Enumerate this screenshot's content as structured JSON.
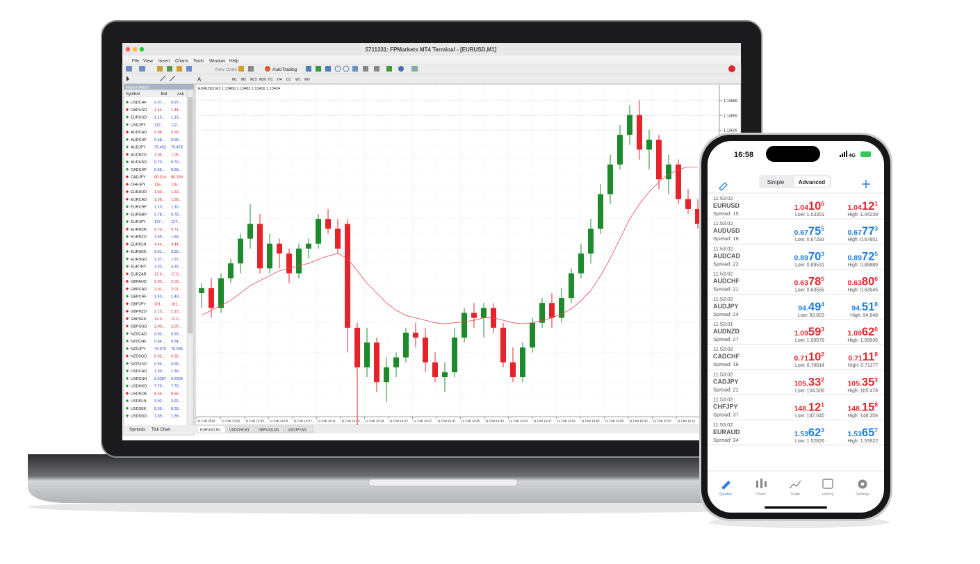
{
  "laptop": {
    "window_title": "5711331: FPMarkets MT4 Terminal - [EURUSD,M1]",
    "menu": [
      "File",
      "View",
      "Insert",
      "Charts",
      "Tools",
      "Window",
      "Help"
    ],
    "toolbar": {
      "new_order": "New Order",
      "autotrading": "AutoTrading",
      "timeframes": [
        "M1",
        "M5",
        "M15",
        "M30",
        "H1",
        "H4",
        "D1",
        "W1",
        "MN"
      ]
    },
    "market_watch": {
      "title": "Market Watch",
      "columns": [
        "Symbol",
        "Bid",
        "Ask"
      ],
      "colors": {
        "up": "#1a3fd0",
        "down": "#d81e1e",
        "up_icon": "#1f9a3a",
        "down_icon": "#d81e1e"
      },
      "rows": [
        {
          "symbol": "USDCHF",
          "bid": "0.97...",
          "ask": "0.97...",
          "trend": "up"
        },
        {
          "symbol": "GBPUSD",
          "bid": "1.44...",
          "ask": "1.44...",
          "trend": "down"
        },
        {
          "symbol": "EURUSD",
          "bid": "1.13...",
          "ask": "1.13...",
          "trend": "up"
        },
        {
          "symbol": "USDJPY",
          "bid": "112...",
          "ask": "112...",
          "trend": "up"
        },
        {
          "symbol": "AUDCAD",
          "bid": "0.98...",
          "ask": "0.90...",
          "trend": "down"
        },
        {
          "symbol": "AUDCHF",
          "bid": "0.68...",
          "ask": "0.68...",
          "trend": "up"
        },
        {
          "symbol": "AUDJPY",
          "bid": "79.452",
          "ask": "79.478",
          "trend": "up"
        },
        {
          "symbol": "AUDNZD",
          "bid": "1.05...",
          "ask": "1.05...",
          "trend": "down"
        },
        {
          "symbol": "AUDUSD",
          "bid": "0.70...",
          "ask": "0.70...",
          "trend": "up"
        },
        {
          "symbol": "CADCHF",
          "bid": "0.69...",
          "ask": "0.69...",
          "trend": "up"
        },
        {
          "symbol": "CADJPY",
          "bid": "80.314",
          "ask": "80.339",
          "trend": "down"
        },
        {
          "symbol": "CHFJPY",
          "bid": "115...",
          "ask": "115...",
          "trend": "down"
        },
        {
          "symbol": "EURAUD",
          "bid": "1.60...",
          "ask": "1.60...",
          "trend": "down"
        },
        {
          "symbol": "EURCAD",
          "bid": "1.58...",
          "ask": "1.58...",
          "trend": "down"
        },
        {
          "symbol": "EURCHF",
          "bid": "1.10...",
          "ask": "1.10...",
          "trend": "up"
        },
        {
          "symbol": "EURGBP",
          "bid": "0.78...",
          "ask": "0.78...",
          "trend": "up"
        },
        {
          "symbol": "EURJPY",
          "bid": "127...",
          "ask": "127...",
          "trend": "up"
        },
        {
          "symbol": "EURNOK",
          "bid": "9.70...",
          "ask": "9.71...",
          "trend": "down"
        },
        {
          "symbol": "EURNZD",
          "bid": "1.69...",
          "ask": "1.69...",
          "trend": "up"
        },
        {
          "symbol": "EURPLN",
          "bid": "4.44...",
          "ask": "4.44...",
          "trend": "down"
        },
        {
          "symbol": "EURSEK",
          "bid": "9.51...",
          "ask": "9.52...",
          "trend": "up"
        },
        {
          "symbol": "EURSGD",
          "bid": "1.57...",
          "ask": "1.57...",
          "trend": "up"
        },
        {
          "symbol": "EURTRY",
          "bid": "3.32...",
          "ask": "3.32...",
          "trend": "up"
        },
        {
          "symbol": "EURZAR",
          "bid": "17.9...",
          "ask": "17.9...",
          "trend": "down"
        },
        {
          "symbol": "GBPAUD",
          "bid": "2.03...",
          "ask": "2.03...",
          "trend": "down"
        },
        {
          "symbol": "GBPCAD",
          "bid": "2.01...",
          "ask": "2.01...",
          "trend": "down"
        },
        {
          "symbol": "GBPCHF",
          "bid": "1.40...",
          "ask": "1.40...",
          "trend": "up"
        },
        {
          "symbol": "GBPJPY",
          "bid": "161...",
          "ask": "161...",
          "trend": "down"
        },
        {
          "symbol": "GBPNZD",
          "bid": "2.15...",
          "ask": "2.15...",
          "trend": "down"
        },
        {
          "symbol": "GBPSEK",
          "bid": "12.0...",
          "ask": "12.0...",
          "trend": "down"
        },
        {
          "symbol": "GBPSGD",
          "bid": "2.00...",
          "ask": "2.00...",
          "trend": "down"
        },
        {
          "symbol": "NZDCAD",
          "bid": "0.93...",
          "ask": "0.93...",
          "trend": "up"
        },
        {
          "symbol": "NZDCHF",
          "bid": "0.64...",
          "ask": "0.64...",
          "trend": "up"
        },
        {
          "symbol": "NZDJPY",
          "bid": "74.975",
          "ask": "75.005",
          "trend": "up"
        },
        {
          "symbol": "NZDSGD",
          "bid": "0.92...",
          "ask": "0.92...",
          "trend": "down"
        },
        {
          "symbol": "NZDUSD",
          "bid": "0.66...",
          "ask": "0.66...",
          "trend": "up"
        },
        {
          "symbol": "USDCAD",
          "bid": "1.39...",
          "ask": "1.39...",
          "trend": "up"
        },
        {
          "symbol": "USDCNH",
          "bid": "6.5287",
          "ask": "6.5309",
          "trend": "up"
        },
        {
          "symbol": "USDHKD",
          "bid": "7.79...",
          "ask": "7.79...",
          "trend": "up"
        },
        {
          "symbol": "USDNOK",
          "bid": "8.55...",
          "ask": "8.56...",
          "trend": "down"
        },
        {
          "symbol": "USDPLN",
          "bid": "3.92...",
          "ask": "3.92...",
          "trend": "up"
        },
        {
          "symbol": "USDSEK",
          "bid": "8.39...",
          "ask": "8.39...",
          "trend": "up"
        },
        {
          "symbol": "USDSGD",
          "bid": "1.39...",
          "ask": "1.39...",
          "trend": "up"
        }
      ],
      "tabs": [
        "Symbols",
        "Tick Chart"
      ]
    },
    "chart": {
      "type": "candlestick",
      "header": "EURUSD,M1  1.13469 1.13483 1.13416 1.13424",
      "colors": {
        "up": "#1d8a2c",
        "down": "#e5232b",
        "ma": "#e8474c",
        "grid": "#c9c9c9"
      },
      "grid": true,
      "ylim": [
        1.1305,
        1.1371
      ],
      "yticks": [
        1.13629,
        1.13659,
        1.13689
      ],
      "candles": [
        [
          1.133,
          1.1332,
          1.1327,
          1.1331
        ],
        [
          1.1331,
          1.1333,
          1.1325,
          1.1327
        ],
        [
          1.1327,
          1.1334,
          1.1326,
          1.1333
        ],
        [
          1.1333,
          1.1337,
          1.1332,
          1.1336
        ],
        [
          1.1336,
          1.1342,
          1.1334,
          1.1341
        ],
        [
          1.1341,
          1.1348,
          1.1339,
          1.1344
        ],
        [
          1.1344,
          1.1346,
          1.1334,
          1.1335
        ],
        [
          1.1335,
          1.1342,
          1.1334,
          1.134
        ],
        [
          1.134,
          1.1341,
          1.1335,
          1.1338
        ],
        [
          1.1338,
          1.1339,
          1.1332,
          1.1334
        ],
        [
          1.1334,
          1.134,
          1.1333,
          1.1339
        ],
        [
          1.1339,
          1.1341,
          1.1337,
          1.134
        ],
        [
          1.134,
          1.1346,
          1.1339,
          1.1345
        ],
        [
          1.1345,
          1.1347,
          1.1342,
          1.1343
        ],
        [
          1.1343,
          1.1345,
          1.1338,
          1.1339
        ],
        [
          1.1344,
          1.1345,
          1.1318,
          1.1323
        ],
        [
          1.1323,
          1.1324,
          1.1302,
          1.1315
        ],
        [
          1.1315,
          1.1323,
          1.1313,
          1.132
        ],
        [
          1.132,
          1.1321,
          1.131,
          1.1312
        ],
        [
          1.1312,
          1.1317,
          1.1308,
          1.1315
        ],
        [
          1.1315,
          1.1318,
          1.1313,
          1.1317
        ],
        [
          1.1317,
          1.1323,
          1.1316,
          1.1322
        ],
        [
          1.1322,
          1.1324,
          1.1319,
          1.1321
        ],
        [
          1.1321,
          1.1323,
          1.1314,
          1.1316
        ],
        [
          1.1316,
          1.1318,
          1.1312,
          1.1313
        ],
        [
          1.1313,
          1.1316,
          1.131,
          1.1314
        ],
        [
          1.1314,
          1.1323,
          1.1313,
          1.1321
        ],
        [
          1.1321,
          1.1327,
          1.132,
          1.1326
        ],
        [
          1.1326,
          1.1328,
          1.1323,
          1.1325
        ],
        [
          1.1325,
          1.1328,
          1.1321,
          1.1327
        ],
        [
          1.1327,
          1.1328,
          1.1322,
          1.1323
        ],
        [
          1.1323,
          1.1324,
          1.1315,
          1.1316
        ],
        [
          1.1316,
          1.1319,
          1.1312,
          1.1313
        ],
        [
          1.1313,
          1.132,
          1.1312,
          1.1319
        ],
        [
          1.1319,
          1.1325,
          1.1318,
          1.1324
        ],
        [
          1.1324,
          1.1329,
          1.1323,
          1.1328
        ],
        [
          1.1328,
          1.133,
          1.1323,
          1.1325
        ],
        [
          1.1325,
          1.1331,
          1.1324,
          1.1329
        ],
        [
          1.1329,
          1.1335,
          1.1328,
          1.1334
        ],
        [
          1.1334,
          1.134,
          1.1333,
          1.1338
        ],
        [
          1.1338,
          1.1345,
          1.1336,
          1.1343
        ],
        [
          1.1343,
          1.1352,
          1.1342,
          1.135
        ],
        [
          1.135,
          1.1358,
          1.1348,
          1.1356
        ],
        [
          1.1356,
          1.1364,
          1.1355,
          1.1362
        ],
        [
          1.1362,
          1.1368,
          1.136,
          1.1366
        ],
        [
          1.1366,
          1.1369,
          1.1357,
          1.1359
        ],
        [
          1.1359,
          1.1363,
          1.1355,
          1.1361
        ],
        [
          1.1361,
          1.1362,
          1.1351,
          1.1353
        ],
        [
          1.1353,
          1.1358,
          1.135,
          1.1356
        ],
        [
          1.1356,
          1.1357,
          1.1348,
          1.1349
        ],
        [
          1.1349,
          1.1351,
          1.1346,
          1.1347
        ],
        [
          1.1347,
          1.1349,
          1.1343,
          1.1344
        ]
      ],
      "ma": [
        1.13255,
        1.13265,
        1.13275,
        1.13285,
        1.133,
        1.13315,
        1.13325,
        1.13335,
        1.13345,
        1.1335,
        1.13355,
        1.1336,
        1.13368,
        1.13375,
        1.1338,
        1.1337,
        1.13345,
        1.1332,
        1.133,
        1.1328,
        1.13265,
        1.13255,
        1.1325,
        1.13245,
        1.1324,
        1.13238,
        1.1324,
        1.13242,
        1.13245,
        1.1325,
        1.1325,
        1.13245,
        1.1324,
        1.13238,
        1.1324,
        1.13245,
        1.1325,
        1.13258,
        1.13268,
        1.13285,
        1.13305,
        1.13335,
        1.1337,
        1.1341,
        1.1345,
        1.1348,
        1.13505,
        1.13525,
        1.1354,
        1.1355,
        1.13555,
        1.13555
      ],
      "x_labels": [
        "11 Feb 2016",
        "11 Feb 13:55",
        "11 Feb 13:59",
        "11 Feb 14:03",
        "11 Feb 14:07",
        "11 Feb 14:11",
        "11 Feb 14:15",
        "11 Feb 14:19",
        "11 Feb 14:23",
        "11 Feb 14:27",
        "11 Feb 14:31",
        "11 Feb 14:35",
        "11 Feb 14:39",
        "11 Feb 14:43",
        "11 Feb 14:47",
        "11 Feb 14:51",
        "11 Feb 14:55",
        "11 Feb 14:59",
        "11 Feb 15:03",
        "11 Feb 15:07",
        "11 Feb 15:11"
      ]
    },
    "chart_tabs": [
      "EURUSD,M1",
      "USDCHF,M1",
      "GBPUSD,M1",
      "USDJPY,M1"
    ]
  },
  "phone": {
    "time": "16:58",
    "network": "4G",
    "segments": [
      "Simple",
      "Advanced"
    ],
    "colors": {
      "up": "#1e7ee4",
      "down": "#e3262d",
      "active": "#2f7fe0"
    },
    "quotes": [
      {
        "time": "11:53:02",
        "symbol": "EURUSD",
        "spread": "Spread: 15",
        "bid": [
          "1.04",
          "10",
          "6"
        ],
        "low": "Low: 1.03301",
        "ask": [
          "1.04",
          "12",
          "1"
        ],
        "high": "High: 1.04239",
        "trend": "down"
      },
      {
        "time": "11:53:02",
        "symbol": "AUDUSD",
        "spread": "Spread: 18",
        "bid": [
          "0.67",
          "75",
          "5"
        ],
        "low": "Low: 0.67293",
        "ask": [
          "0.67",
          "77",
          "3"
        ],
        "high": "High: 0.67851",
        "trend": "up"
      },
      {
        "time": "11:53:02",
        "symbol": "AUDCAD",
        "spread": "Spread: 22",
        "bid": [
          "0.89",
          "70",
          "3"
        ],
        "low": "Low: 0.89531",
        "ask": [
          "0.89",
          "72",
          "5"
        ],
        "high": "High: 0.89889",
        "trend": "up"
      },
      {
        "time": "11:53:02",
        "symbol": "AUDCHF",
        "spread": "Spread: 21",
        "bid": [
          "0.63",
          "78",
          "5"
        ],
        "low": "Low: 0.63555",
        "ask": [
          "0.63",
          "80",
          "6"
        ],
        "high": "High: 0.63945",
        "trend": "down"
      },
      {
        "time": "11:53:02",
        "symbol": "AUDJPY",
        "spread": "Spread: 24",
        "bid": [
          "94.",
          "49",
          "4"
        ],
        "low": "Low: 93.823",
        "ask": [
          "94.",
          "51",
          "8"
        ],
        "high": "High: 94.648",
        "trend": "up"
      },
      {
        "time": "11:53:01",
        "symbol": "AUDNZD",
        "spread": "Spread: 27",
        "bid": [
          "1.09",
          "59",
          "3"
        ],
        "low": "Low: 1.09579",
        "ask": [
          "1.09",
          "62",
          "0"
        ],
        "high": "High: 1.09935",
        "trend": "down"
      },
      {
        "time": "11:53:02",
        "symbol": "CADCHF",
        "spread": "Spread: 16",
        "bid": [
          "0.71",
          "10",
          "2"
        ],
        "low": "Low: 0.70814",
        "ask": [
          "0.71",
          "11",
          "8"
        ],
        "high": "High: 0.71177",
        "trend": "down"
      },
      {
        "time": "11:53:02",
        "symbol": "CADJPY",
        "spread": "Spread: 21",
        "bid": [
          "105.",
          "33",
          "2"
        ],
        "low": "Low: 104.506",
        "ask": [
          "105.",
          "35",
          "3"
        ],
        "high": "High: 105.478",
        "trend": "down"
      },
      {
        "time": "11:53:02",
        "symbol": "CHFJPY",
        "spread": "Spread: 37",
        "bid": [
          "148.",
          "12",
          "1"
        ],
        "low": "Low: 147.045",
        "ask": [
          "148.",
          "15",
          "8"
        ],
        "high": "High: 148.356",
        "trend": "down"
      },
      {
        "time": "11:53:02",
        "symbol": "EURAUD",
        "spread": "Spread: 34",
        "bid": [
          "1.53",
          "62",
          "3"
        ],
        "low": "Low: 1.52826",
        "ask": [
          "1.53",
          "65",
          "7"
        ],
        "high": "High: 1.53922",
        "trend": "up"
      }
    ],
    "tabs": [
      "Quotes",
      "Chart",
      "Trade",
      "History",
      "Settings"
    ]
  }
}
